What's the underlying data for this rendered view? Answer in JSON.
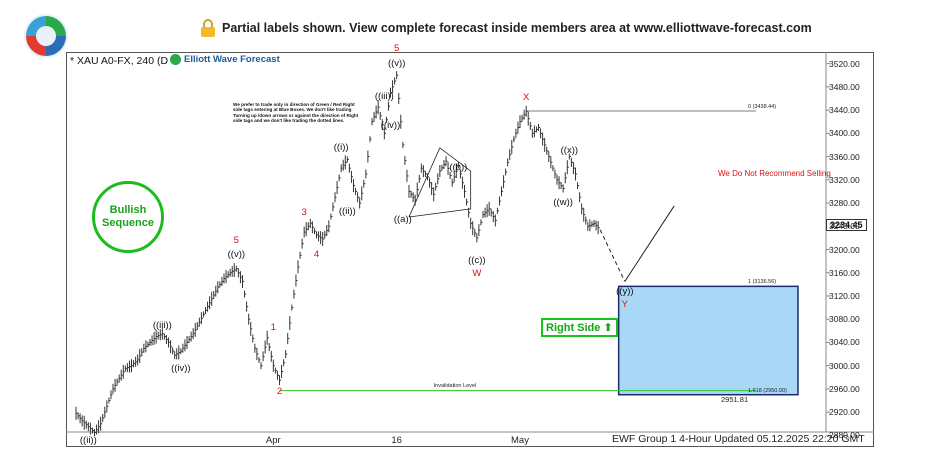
{
  "header": {
    "banner_text": "Partial labels shown. View complete forecast inside members area at www.elliottwave-forecast.com",
    "lock_icon": "lock-icon"
  },
  "chart_header": {
    "symbol": "* XAU A0-FX, 240 (D",
    "brand": "Elliott Wave Forecast"
  },
  "note": {
    "text": "We prefer to trade only in direction of Green / Red Right side tags entering at Blue Boxes. We don't like trading Turning up /down arrows or against the direction of Right side tags and we don't like trading the dotted lines."
  },
  "bullish": {
    "line1": "Bullish",
    "line2": "Sequence"
  },
  "right_side": {
    "label": "Right Side",
    "arrow": "⬆"
  },
  "warning": "We Do Not Recommend Selling",
  "footer": "EWF Group 1 4-Hour Updated 05.12.2025 22:20 GMT",
  "current_price": "3234.45",
  "chart_data": {
    "type": "line",
    "title": "* XAU A0-FX, 240",
    "xlabel": "",
    "ylabel": "",
    "ylim": [
      2860,
      3540
    ],
    "y_ticks": [
      "3520.00",
      "3480.00",
      "3440.00",
      "3400.00",
      "3360.00",
      "3320.00",
      "3280.00",
      "3240.00",
      "3200.00",
      "3160.00",
      "3120.00",
      "3080.00",
      "3040.00",
      "3000.00",
      "2960.00",
      "2920.00",
      "2880.00"
    ],
    "x_ticks": [
      "Apr",
      "16",
      "May"
    ],
    "grid": false,
    "series": [
      {
        "name": "",
        "points": [
          {
            "x": 0,
            "y": 2918
          },
          {
            "x": 1,
            "y": 2905
          },
          {
            "x": 2,
            "y": 2895
          },
          {
            "x": 3,
            "y": 2885
          },
          {
            "x": 4,
            "y": 2900
          },
          {
            "x": 5,
            "y": 2930
          },
          {
            "x": 6,
            "y": 2960
          },
          {
            "x": 7,
            "y": 2978
          },
          {
            "x": 8,
            "y": 2995
          },
          {
            "x": 9,
            "y": 3000
          },
          {
            "x": 10,
            "y": 3010
          },
          {
            "x": 11,
            "y": 3030
          },
          {
            "x": 12,
            "y": 3040
          },
          {
            "x": 13,
            "y": 3050
          },
          {
            "x": 14,
            "y": 3055
          },
          {
            "x": 15,
            "y": 3040
          },
          {
            "x": 16,
            "y": 3018
          },
          {
            "x": 17,
            "y": 3025
          },
          {
            "x": 18,
            "y": 3040
          },
          {
            "x": 19,
            "y": 3055
          },
          {
            "x": 20,
            "y": 3075
          },
          {
            "x": 21,
            "y": 3095
          },
          {
            "x": 22,
            "y": 3115
          },
          {
            "x": 23,
            "y": 3135
          },
          {
            "x": 24,
            "y": 3150
          },
          {
            "x": 25,
            "y": 3160
          },
          {
            "x": 26,
            "y": 3167
          },
          {
            "x": 27,
            "y": 3145
          },
          {
            "x": 28,
            "y": 3080
          },
          {
            "x": 29,
            "y": 3030
          },
          {
            "x": 30,
            "y": 3000
          },
          {
            "x": 31,
            "y": 3048
          },
          {
            "x": 32,
            "y": 3000
          },
          {
            "x": 33,
            "y": 2975
          },
          {
            "x": 34,
            "y": 3020
          },
          {
            "x": 35,
            "y": 3100
          },
          {
            "x": 36,
            "y": 3170
          },
          {
            "x": 37,
            "y": 3230
          },
          {
            "x": 38,
            "y": 3245
          },
          {
            "x": 39,
            "y": 3225
          },
          {
            "x": 40,
            "y": 3218
          },
          {
            "x": 41,
            "y": 3240
          },
          {
            "x": 42,
            "y": 3290
          },
          {
            "x": 43,
            "y": 3340
          },
          {
            "x": 44,
            "y": 3355
          },
          {
            "x": 45,
            "y": 3310
          },
          {
            "x": 46,
            "y": 3280
          },
          {
            "x": 47,
            "y": 3330
          },
          {
            "x": 48,
            "y": 3420
          },
          {
            "x": 49,
            "y": 3445
          },
          {
            "x": 50,
            "y": 3400
          },
          {
            "x": 51,
            "y": 3470
          },
          {
            "x": 52,
            "y": 3500
          },
          {
            "x": 53,
            "y": 3380
          },
          {
            "x": 54,
            "y": 3300
          },
          {
            "x": 55,
            "y": 3285
          },
          {
            "x": 56,
            "y": 3340
          },
          {
            "x": 57,
            "y": 3325
          },
          {
            "x": 58,
            "y": 3295
          },
          {
            "x": 59,
            "y": 3335
          },
          {
            "x": 60,
            "y": 3352
          },
          {
            "x": 61,
            "y": 3315
          },
          {
            "x": 62,
            "y": 3345
          },
          {
            "x": 63,
            "y": 3300
          },
          {
            "x": 64,
            "y": 3245
          },
          {
            "x": 65,
            "y": 3220
          },
          {
            "x": 66,
            "y": 3260
          },
          {
            "x": 67,
            "y": 3270
          },
          {
            "x": 68,
            "y": 3250
          },
          {
            "x": 69,
            "y": 3300
          },
          {
            "x": 70,
            "y": 3350
          },
          {
            "x": 71,
            "y": 3390
          },
          {
            "x": 72,
            "y": 3420
          },
          {
            "x": 73,
            "y": 3438
          },
          {
            "x": 74,
            "y": 3400
          },
          {
            "x": 75,
            "y": 3410
          },
          {
            "x": 76,
            "y": 3380
          },
          {
            "x": 77,
            "y": 3350
          },
          {
            "x": 78,
            "y": 3320
          },
          {
            "x": 79,
            "y": 3305
          },
          {
            "x": 80,
            "y": 3360
          },
          {
            "x": 81,
            "y": 3330
          },
          {
            "x": 82,
            "y": 3270
          },
          {
            "x": 83,
            "y": 3240
          },
          {
            "x": 84,
            "y": 3245
          },
          {
            "x": 85,
            "y": 3234
          }
        ]
      }
    ],
    "projection": [
      {
        "x": 85,
        "y": 3234
      },
      {
        "x": 89,
        "y": 3145
      },
      {
        "x": 97,
        "y": 3275
      }
    ],
    "blue_box": {
      "y_top": 3136.56,
      "y_bottom": 2950.0,
      "x_from": 88,
      "x_to": 120
    },
    "levels": [
      {
        "label": "1 (3136.56)",
        "y": 3136.56
      },
      {
        "label": "1.618 (2950.00)",
        "y": 2950.0
      },
      {
        "label": "0 (3438.44)",
        "y": 3438.44
      },
      {
        "label": "Invalidation Level",
        "y": 2957.0
      },
      {
        "label": "2951.81",
        "y": 2951.81
      }
    ],
    "wave_labels": [
      {
        "text": "((ii))",
        "x": 2,
        "y": 2870,
        "color": "black"
      },
      {
        "text": "((iii))",
        "x": 14,
        "y": 3068,
        "color": "black"
      },
      {
        "text": "((iv))",
        "x": 17,
        "y": 2995,
        "color": "black"
      },
      {
        "text": "5",
        "x": 26,
        "y": 3215,
        "color": "red"
      },
      {
        "text": "((v))",
        "x": 26,
        "y": 3190,
        "color": "black"
      },
      {
        "text": "1",
        "x": 32,
        "y": 3065,
        "color": "red"
      },
      {
        "text": "2",
        "x": 33,
        "y": 2955,
        "color": "red"
      },
      {
        "text": "3",
        "x": 37,
        "y": 3262,
        "color": "red"
      },
      {
        "text": "4",
        "x": 39,
        "y": 3190,
        "color": "red"
      },
      {
        "text": "((i))",
        "x": 43,
        "y": 3375,
        "color": "black"
      },
      {
        "text": "((ii))",
        "x": 44,
        "y": 3265,
        "color": "black"
      },
      {
        "text": "5",
        "x": 52,
        "y": 3545,
        "color": "red"
      },
      {
        "text": "((v))",
        "x": 52,
        "y": 3520,
        "color": "black"
      },
      {
        "text": "((iii))",
        "x": 50,
        "y": 3462,
        "color": "black"
      },
      {
        "text": "((iv))",
        "x": 51,
        "y": 3412,
        "color": "black"
      },
      {
        "text": "((a))",
        "x": 53,
        "y": 3250,
        "color": "black"
      },
      {
        "text": "((b))",
        "x": 62,
        "y": 3340,
        "color": "black"
      },
      {
        "text": "((c))",
        "x": 65,
        "y": 3180,
        "color": "black"
      },
      {
        "text": "W",
        "x": 65,
        "y": 3158,
        "color": "red"
      },
      {
        "text": "X",
        "x": 73,
        "y": 3460,
        "color": "red"
      },
      {
        "text": "((x))",
        "x": 80,
        "y": 3370,
        "color": "black"
      },
      {
        "text": "((w))",
        "x": 79,
        "y": 3280,
        "color": "black"
      },
      {
        "text": "((y))",
        "x": 89,
        "y": 3127,
        "color": "black"
      },
      {
        "text": "Y",
        "x": 89,
        "y": 3105,
        "color": "red"
      }
    ]
  }
}
